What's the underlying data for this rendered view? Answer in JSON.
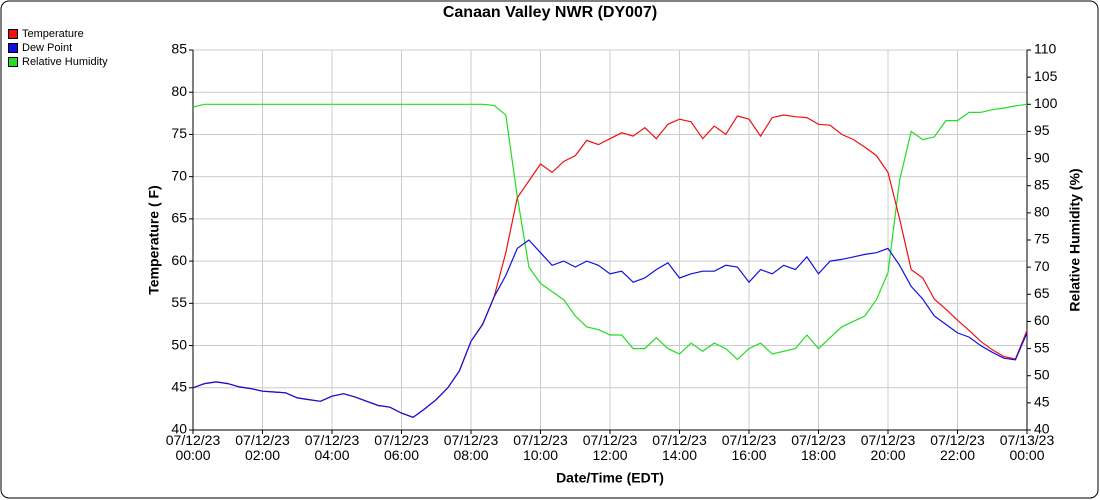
{
  "chart_data": {
    "type": "line",
    "title": "Canaan Valley NWR (DY007)",
    "xlabel": "Date/Time (EDT)",
    "ylabel": "Temperature ( F)",
    "y2label": "Relative Humidity (%)",
    "x": [
      "07/12/23 00:00",
      "07/12/23 00:20",
      "07/12/23 00:40",
      "07/12/23 01:00",
      "07/12/23 01:20",
      "07/12/23 01:40",
      "07/12/23 02:00",
      "07/12/23 02:20",
      "07/12/23 02:40",
      "07/12/23 03:00",
      "07/12/23 03:20",
      "07/12/23 03:40",
      "07/12/23 04:00",
      "07/12/23 04:20",
      "07/12/23 04:40",
      "07/12/23 05:00",
      "07/12/23 05:20",
      "07/12/23 05:40",
      "07/12/23 06:00",
      "07/12/23 06:20",
      "07/12/23 06:40",
      "07/12/23 07:00",
      "07/12/23 07:20",
      "07/12/23 07:40",
      "07/12/23 08:00",
      "07/12/23 08:20",
      "07/12/23 08:40",
      "07/12/23 09:00",
      "07/12/23 09:20",
      "07/12/23 09:40",
      "07/12/23 10:00",
      "07/12/23 10:20",
      "07/12/23 10:40",
      "07/12/23 11:00",
      "07/12/23 11:20",
      "07/12/23 11:40",
      "07/12/23 12:00",
      "07/12/23 12:20",
      "07/12/23 12:40",
      "07/12/23 13:00",
      "07/12/23 13:20",
      "07/12/23 13:40",
      "07/12/23 14:00",
      "07/12/23 14:20",
      "07/12/23 14:40",
      "07/12/23 15:00",
      "07/12/23 15:20",
      "07/12/23 15:40",
      "07/12/23 16:00",
      "07/12/23 16:20",
      "07/12/23 16:40",
      "07/12/23 17:00",
      "07/12/23 17:20",
      "07/12/23 17:40",
      "07/12/23 18:00",
      "07/12/23 18:20",
      "07/12/23 18:40",
      "07/12/23 19:00",
      "07/12/23 19:20",
      "07/12/23 19:40",
      "07/12/23 20:00",
      "07/12/23 20:20",
      "07/12/23 20:40",
      "07/12/23 21:00",
      "07/12/23 21:20",
      "07/12/23 21:40",
      "07/12/23 22:00",
      "07/12/23 22:20",
      "07/12/23 22:40",
      "07/12/23 23:00",
      "07/12/23 23:20",
      "07/12/23 23:40",
      "07/13/23 00:00"
    ],
    "series": [
      {
        "name": "Temperature",
        "color": "#ee1111",
        "values": [
          45.0,
          45.5,
          45.7,
          45.5,
          45.1,
          44.9,
          44.6,
          44.5,
          44.4,
          43.8,
          43.6,
          43.4,
          44.0,
          44.3,
          43.9,
          43.4,
          42.9,
          42.7,
          42.0,
          41.5,
          42.5,
          43.6,
          45.0,
          47.0,
          50.5,
          52.5,
          55.8,
          61.0,
          67.5,
          69.5,
          71.5,
          70.5,
          71.8,
          72.5,
          74.3,
          73.8,
          74.5,
          75.2,
          74.8,
          75.8,
          74.5,
          76.2,
          76.8,
          76.5,
          74.5,
          76.0,
          75.0,
          77.2,
          76.8,
          74.8,
          77.0,
          77.3,
          77.1,
          77.0,
          76.2,
          76.1,
          75.0,
          74.4,
          73.5,
          72.5,
          70.5,
          65.0,
          59.0,
          58.0,
          55.5,
          54.3,
          53.0,
          51.8,
          50.5,
          49.5,
          48.7,
          48.4,
          51.8
        ]
      },
      {
        "name": "Dew Point",
        "color": "#1111dd",
        "values": [
          45.0,
          45.5,
          45.7,
          45.5,
          45.1,
          44.9,
          44.6,
          44.5,
          44.4,
          43.8,
          43.6,
          43.4,
          44.0,
          44.3,
          43.9,
          43.4,
          42.9,
          42.7,
          42.0,
          41.5,
          42.5,
          43.6,
          45.0,
          47.0,
          50.5,
          52.5,
          55.8,
          58.3,
          61.5,
          62.5,
          61.0,
          59.5,
          60.0,
          59.3,
          60.0,
          59.5,
          58.5,
          58.8,
          57.5,
          58.0,
          59.0,
          59.8,
          58.0,
          58.5,
          58.8,
          58.8,
          59.5,
          59.3,
          57.5,
          59.0,
          58.5,
          59.5,
          59.0,
          60.5,
          58.5,
          60.0,
          60.2,
          60.5,
          60.8,
          61.0,
          61.5,
          59.5,
          57.0,
          55.5,
          53.5,
          52.5,
          51.5,
          51.0,
          50.0,
          49.2,
          48.5,
          48.3,
          51.5
        ]
      },
      {
        "name": "Relative Humidity",
        "color": "#22dd22",
        "axis": "y2",
        "values": [
          99.5,
          100,
          100,
          100,
          100,
          100,
          100,
          100,
          100,
          100,
          100,
          100,
          100,
          100,
          100,
          100,
          100,
          100,
          100,
          100,
          100,
          100,
          100,
          100,
          100,
          100,
          99.8,
          98,
          83,
          70,
          67,
          65.5,
          64,
          61,
          59,
          58.5,
          57.5,
          57.5,
          55,
          55,
          57,
          55,
          54,
          56,
          54.5,
          56,
          55,
          53,
          55,
          56,
          54,
          54.5,
          55,
          57.5,
          55,
          57,
          59,
          60,
          61,
          64,
          69,
          86,
          95,
          93.5,
          94,
          97,
          97,
          98.5,
          98.5,
          99,
          99.3,
          99.7,
          100
        ]
      }
    ],
    "xlim": [
      "07/12/23 00:00",
      "07/13/23 00:00"
    ],
    "xticks": [
      "07/12/23 00:00",
      "07/12/23 02:00",
      "07/12/23 04:00",
      "07/12/23 06:00",
      "07/12/23 08:00",
      "07/12/23 10:00",
      "07/12/23 12:00",
      "07/12/23 14:00",
      "07/12/23 16:00",
      "07/12/23 18:00",
      "07/12/23 20:00",
      "07/12/23 22:00",
      "07/13/23 00:00"
    ],
    "ylim": [
      40,
      85
    ],
    "yticks": [
      40,
      45,
      50,
      55,
      60,
      65,
      70,
      75,
      80,
      85
    ],
    "y2lim": [
      40,
      110
    ],
    "y2ticks": [
      40,
      45,
      50,
      55,
      60,
      65,
      70,
      75,
      80,
      85,
      90,
      95,
      100,
      105,
      110
    ],
    "grid": true,
    "legend": "upper left"
  }
}
